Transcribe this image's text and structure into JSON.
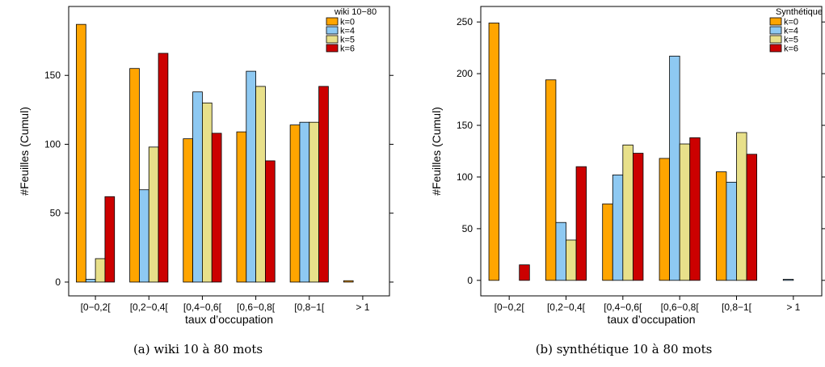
{
  "colors": {
    "k0": "#FFA500",
    "k4": "#8EC9F2",
    "k5": "#E8E08A",
    "k6": "#CC0000"
  },
  "chart_data": [
    {
      "type": "bar",
      "legend_title": "wiki 10−80",
      "legend_position": "top-right",
      "categories": [
        "[0−0,2[",
        "[0,2−0,4[",
        "[0,4−0,6[",
        "[0,6−0,8[",
        "[0,8−1[",
        "> 1"
      ],
      "series": [
        {
          "name": "k=0",
          "values": [
            187,
            155,
            104,
            109,
            114,
            1
          ]
        },
        {
          "name": "k=4",
          "values": [
            2,
            67,
            138,
            153,
            116,
            0
          ]
        },
        {
          "name": "k=5",
          "values": [
            17,
            98,
            130,
            142,
            116,
            0
          ]
        },
        {
          "name": "k=6",
          "values": [
            62,
            166,
            108,
            88,
            142,
            0
          ]
        }
      ],
      "yticks": [
        0,
        50,
        100,
        150
      ],
      "ylim": [
        -10,
        200
      ],
      "xlabel": "taux d’occupation",
      "ylabel": "#Feuilles (Cumul)",
      "caption": "(a) wiki 10 à 80 mots",
      "grid": false
    },
    {
      "type": "bar",
      "legend_title": "Synthétique",
      "legend_position": "top-right",
      "categories": [
        "[0−0,2[",
        "[0,2−0,4[",
        "[0,4−0,6[",
        "[0,6−0,8[",
        "[0,8−1[",
        "> 1"
      ],
      "series": [
        {
          "name": "k=0",
          "values": [
            249,
            194,
            74,
            118,
            105,
            0
          ]
        },
        {
          "name": "k=4",
          "values": [
            0,
            56,
            102,
            217,
            95,
            1
          ]
        },
        {
          "name": "k=5",
          "values": [
            0,
            39,
            131,
            132,
            143,
            0
          ]
        },
        {
          "name": "k=6",
          "values": [
            15,
            110,
            123,
            138,
            122,
            0
          ]
        }
      ],
      "yticks": [
        0,
        50,
        100,
        150,
        200,
        250
      ],
      "ylim": [
        -15,
        265
      ],
      "xlabel": "taux d’occupation",
      "ylabel": "#Feuilles (Cumul)",
      "caption": "(b) synthétique 10 à 80 mots",
      "grid": false
    }
  ]
}
